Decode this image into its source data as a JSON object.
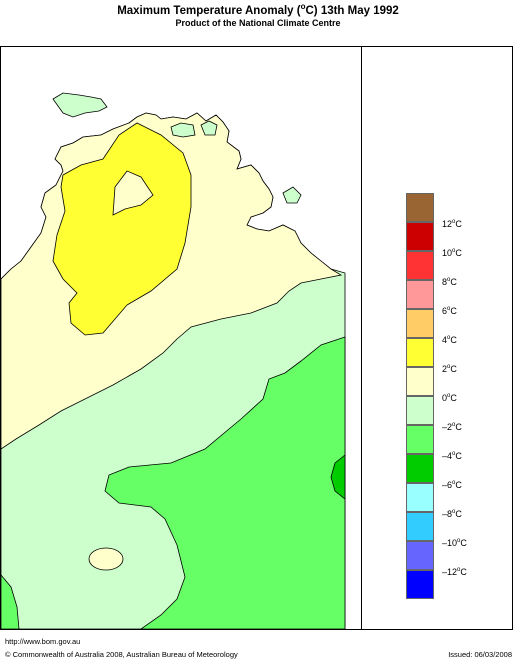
{
  "title": {
    "prefix": "Maximum Temperature Anomaly (",
    "degree": "o",
    "suffix": "C)  13th May 1992"
  },
  "subtitle": "Product of the National Climate Centre",
  "colors": {
    "ocean": "#ffffff",
    "band_neg4_neg2": "#66ff66",
    "band_neg2_0": "#ccffcc",
    "band_0_2": "#ffffcc",
    "band_2_4": "#ffff33",
    "band_neg6_neg4": "#00cc00",
    "outline": "#000000"
  },
  "legend": {
    "unit_degree": "o",
    "unit": "C",
    "items": [
      {
        "label": "12",
        "color": "#996633"
      },
      {
        "label": "10",
        "color": "#cc0000"
      },
      {
        "label": "8",
        "color": "#ff3333"
      },
      {
        "label": "6",
        "color": "#ff9999"
      },
      {
        "label": "4",
        "color": "#ffcc66"
      },
      {
        "label": "2",
        "color": "#ffff33"
      },
      {
        "label": "0",
        "color": "#ffffcc"
      },
      {
        "label": "–2",
        "color": "#ccffcc"
      },
      {
        "label": "–4",
        "color": "#66ff66"
      },
      {
        "label": "–6",
        "color": "#00cc00"
      },
      {
        "label": "–8",
        "color": "#99ffff"
      },
      {
        "label": "–10",
        "color": "#33ccff"
      },
      {
        "label": "–12",
        "color": "#6666ff"
      },
      {
        "label": "",
        "color": "#0000ff"
      }
    ]
  },
  "footer": {
    "url": "http://www.bom.gov.au",
    "copyright": "© Commonwealth of Australia 2008, Australian Bureau of Meteorology",
    "issued": "Issued: 06/03/2008"
  }
}
